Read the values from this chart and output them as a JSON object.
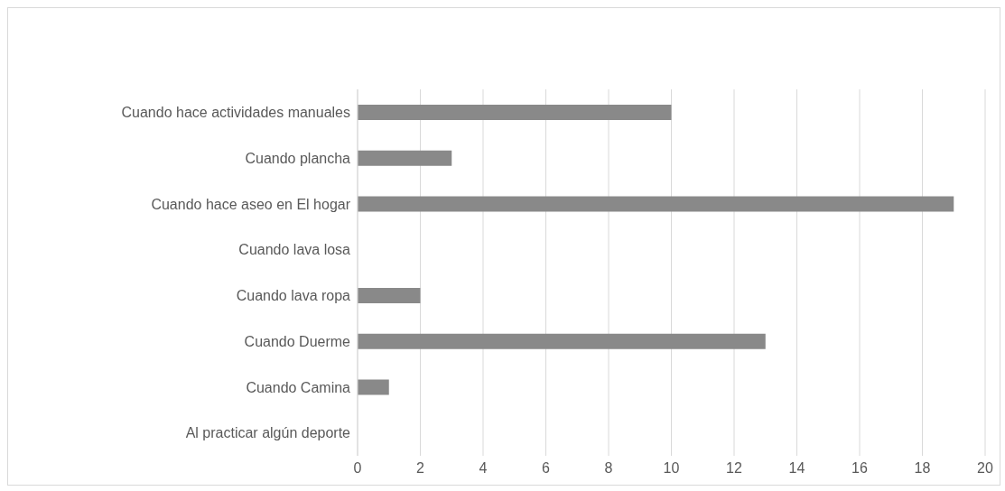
{
  "chart_data": {
    "type": "bar",
    "orientation": "horizontal",
    "categories": [
      "Cuando hace actividades manuales",
      "Cuando plancha",
      "Cuando hace aseo en El hogar",
      "Cuando lava losa",
      "Cuando lava ropa",
      "Cuando Duerme",
      "Cuando Camina",
      "Al practicar algún deporte"
    ],
    "values": [
      10,
      3,
      19,
      0,
      2,
      13,
      1,
      0
    ],
    "color": "#898989",
    "xlim": [
      0,
      20
    ],
    "xticks": [
      0,
      2,
      4,
      6,
      8,
      10,
      12,
      14,
      16,
      18,
      20
    ],
    "grid": "x"
  }
}
